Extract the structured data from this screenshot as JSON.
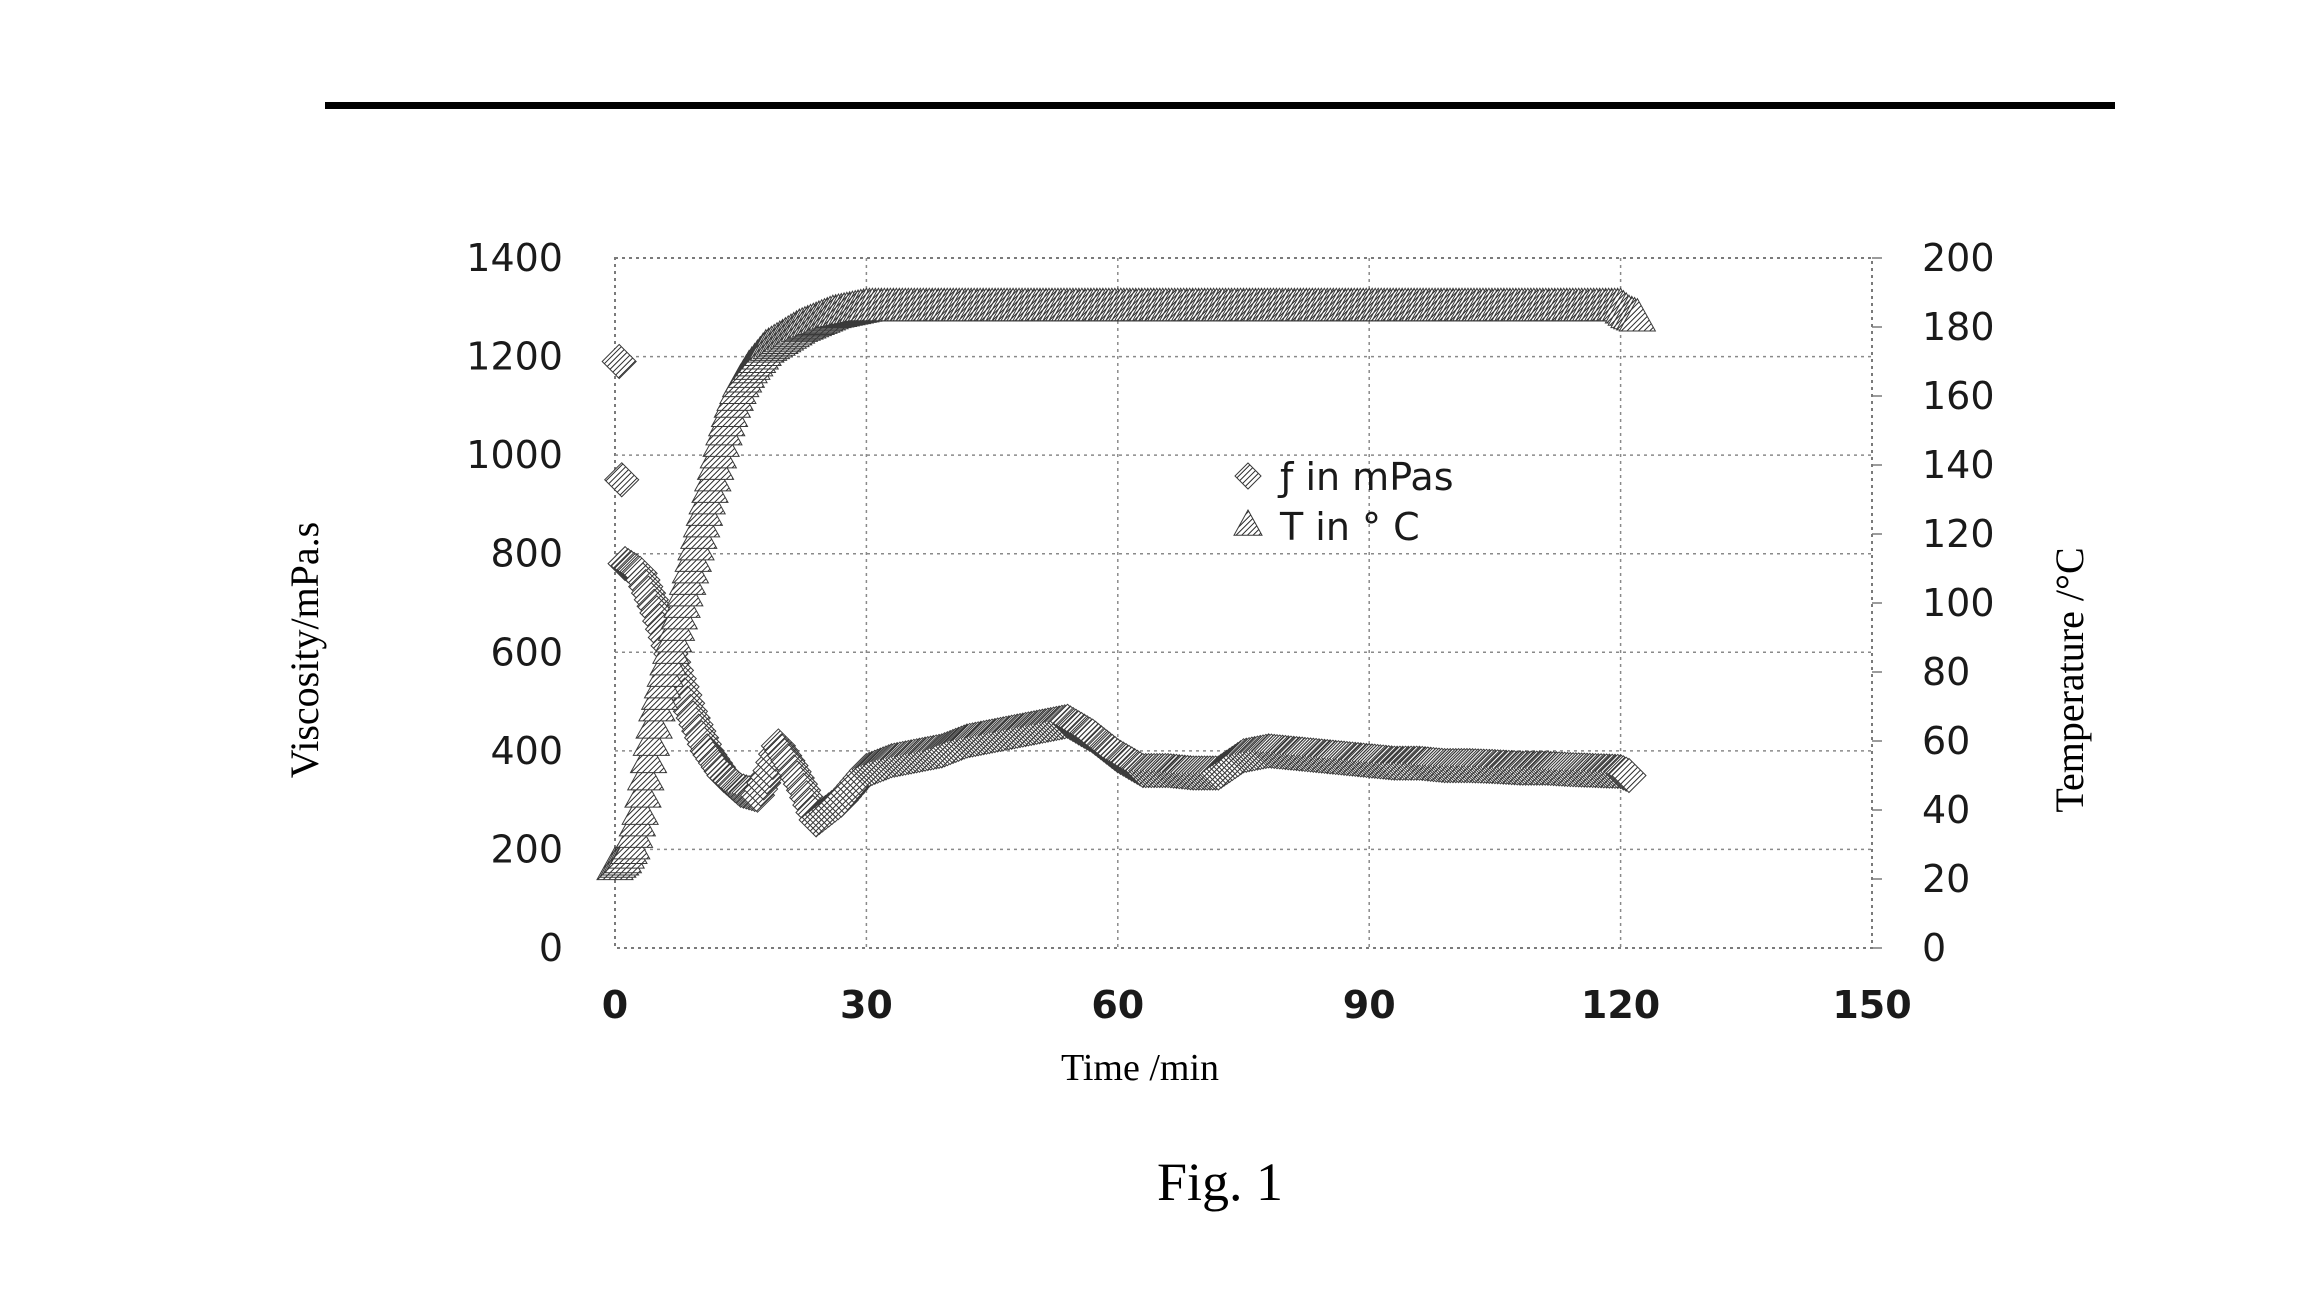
{
  "page": {
    "caption": "Fig. 1"
  },
  "chart_data": {
    "type": "scatter",
    "xlabel": "Time /min",
    "ylabel_left": "Viscosity/mPa.s",
    "ylabel_right": "Temperature /°C",
    "xlim": [
      0,
      150
    ],
    "ylim_left": [
      0,
      1400
    ],
    "ylim_right": [
      0,
      200
    ],
    "xticks": [
      "0",
      "30",
      "60",
      "90",
      "120",
      "150"
    ],
    "yticks_left": [
      "0",
      "200",
      "400",
      "600",
      "800",
      "1000",
      "1200",
      "1400"
    ],
    "yticks_right": [
      "0",
      "20",
      "40",
      "60",
      "80",
      "100",
      "120",
      "140",
      "160",
      "180",
      "200"
    ],
    "grid": true,
    "legend_position": "center",
    "series": [
      {
        "name": "ƒ in mPas",
        "axis": "left",
        "marker": "diamond",
        "points": [
          [
            0.5,
            1190
          ],
          [
            0.8,
            950
          ],
          [
            1.2,
            780
          ],
          [
            3,
            760
          ],
          [
            5,
            680
          ],
          [
            7,
            580
          ],
          [
            9,
            480
          ],
          [
            11,
            400
          ],
          [
            13,
            350
          ],
          [
            15,
            320
          ],
          [
            17,
            310
          ],
          [
            18.5,
            360
          ],
          [
            19.5,
            410
          ],
          [
            21,
            370
          ],
          [
            22.5,
            320
          ],
          [
            24,
            260
          ],
          [
            25.5,
            280
          ],
          [
            27,
            300
          ],
          [
            28.5,
            330
          ],
          [
            30,
            360
          ],
          [
            33,
            380
          ],
          [
            36,
            390
          ],
          [
            39,
            400
          ],
          [
            42,
            420
          ],
          [
            45,
            430
          ],
          [
            48,
            440
          ],
          [
            51,
            450
          ],
          [
            54,
            460
          ],
          [
            57,
            430
          ],
          [
            60,
            390
          ],
          [
            63,
            360
          ],
          [
            66,
            360
          ],
          [
            69,
            355
          ],
          [
            72,
            355
          ],
          [
            75,
            390
          ],
          [
            78,
            400
          ],
          [
            81,
            395
          ],
          [
            84,
            390
          ],
          [
            87,
            385
          ],
          [
            90,
            380
          ],
          [
            93,
            375
          ],
          [
            96,
            375
          ],
          [
            99,
            370
          ],
          [
            102,
            370
          ],
          [
            105,
            368
          ],
          [
            108,
            365
          ],
          [
            111,
            365
          ],
          [
            114,
            362
          ],
          [
            117,
            360
          ],
          [
            120,
            358
          ],
          [
            121,
            350
          ]
        ]
      },
      {
        "name": "T in ° C",
        "axis": "right",
        "marker": "triangle",
        "points": [
          [
            0,
            24
          ],
          [
            1,
            26
          ],
          [
            2,
            30
          ],
          [
            3,
            40
          ],
          [
            4,
            55
          ],
          [
            5,
            70
          ],
          [
            6,
            80
          ],
          [
            7,
            90
          ],
          [
            8,
            100
          ],
          [
            9,
            110
          ],
          [
            10,
            120
          ],
          [
            11,
            130
          ],
          [
            12,
            140
          ],
          [
            13,
            150
          ],
          [
            14,
            158
          ],
          [
            15,
            164
          ],
          [
            16,
            168
          ],
          [
            17,
            171
          ],
          [
            18,
            174
          ],
          [
            20,
            177
          ],
          [
            22,
            180
          ],
          [
            24,
            182
          ],
          [
            26,
            184
          ],
          [
            28,
            185
          ],
          [
            30,
            186
          ],
          [
            35,
            186
          ],
          [
            40,
            186
          ],
          [
            45,
            186
          ],
          [
            50,
            186
          ],
          [
            55,
            186
          ],
          [
            60,
            186
          ],
          [
            65,
            186
          ],
          [
            70,
            186
          ],
          [
            75,
            186
          ],
          [
            80,
            186
          ],
          [
            85,
            186
          ],
          [
            90,
            186
          ],
          [
            95,
            186
          ],
          [
            100,
            186
          ],
          [
            105,
            186
          ],
          [
            110,
            186
          ],
          [
            115,
            186
          ],
          [
            120,
            186
          ],
          [
            121,
            184
          ],
          [
            122,
            183
          ]
        ]
      }
    ]
  }
}
